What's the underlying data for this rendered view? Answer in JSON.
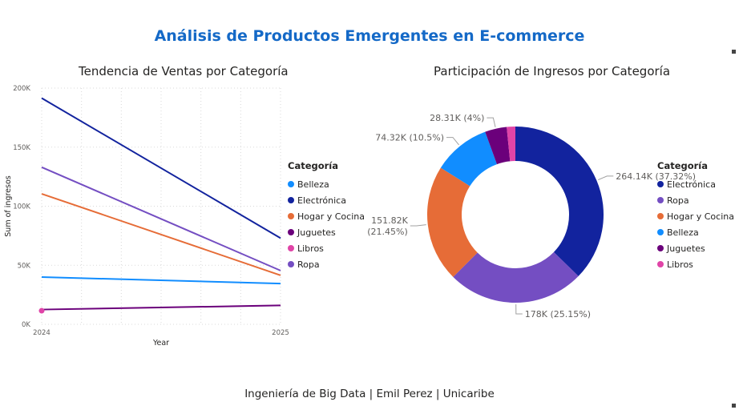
{
  "page": {
    "title": "Análisis de Productos Emergentes en E-commerce",
    "footer": "Ingeniería de Big Data | Emil Perez | Unicaribe"
  },
  "line_chart_legend": {
    "title": "Categoría",
    "items": [
      {
        "label": "Belleza",
        "color": "#118dff"
      },
      {
        "label": "Electrónica",
        "color": "#12239e"
      },
      {
        "label": "Hogar y Cocina",
        "color": "#e66c37"
      },
      {
        "label": "Juguetes",
        "color": "#6b007b"
      },
      {
        "label": "Libros",
        "color": "#e044a7"
      },
      {
        "label": "Ropa",
        "color": "#744ec2"
      }
    ]
  },
  "pie_chart_legend": {
    "title": "Categoría",
    "items": [
      {
        "label": "Electrónica",
        "color": "#12239e"
      },
      {
        "label": "Ropa",
        "color": "#744ec2"
      },
      {
        "label": "Hogar y Cocina",
        "color": "#e66c37"
      },
      {
        "label": "Belleza",
        "color": "#118dff"
      },
      {
        "label": "Juguetes",
        "color": "#6b007b"
      },
      {
        "label": "Libros",
        "color": "#e044a7"
      }
    ]
  },
  "chart_data": [
    {
      "type": "line",
      "title": "Tendencia de Ventas por Categoría",
      "xlabel": "Year",
      "ylabel": "Sum of ingresos",
      "x": [
        "2024",
        "2025"
      ],
      "ylim": [
        0,
        200000
      ],
      "yticks": [
        0,
        50000,
        100000,
        150000,
        200000
      ],
      "ytick_labels": [
        "0K",
        "50K",
        "100K",
        "150K",
        "200K"
      ],
      "grid": true,
      "legend_position": "right",
      "series": [
        {
          "name": "Belleza",
          "color": "#118dff",
          "values": [
            40000,
            34500
          ]
        },
        {
          "name": "Electrónica",
          "color": "#12239e",
          "values": [
            191500,
            73000
          ]
        },
        {
          "name": "Hogar y Cocina",
          "color": "#e66c37",
          "values": [
            110500,
            41500
          ]
        },
        {
          "name": "Juguetes",
          "color": "#6b007b",
          "values": [
            12500,
            16000
          ]
        },
        {
          "name": "Libros",
          "color": "#e044a7",
          "values": [
            11500,
            null
          ]
        },
        {
          "name": "Ropa",
          "color": "#744ec2",
          "values": [
            133000,
            45500
          ]
        }
      ]
    },
    {
      "type": "pie",
      "donut": true,
      "title": "Participación de Ingresos por Categoría",
      "legend_position": "right",
      "slices": [
        {
          "name": "Electrónica",
          "value": 264140,
          "percent": 37.32,
          "color": "#12239e",
          "label": "264.14K (37.32%)"
        },
        {
          "name": "Ropa",
          "value": 178000,
          "percent": 25.15,
          "color": "#744ec2",
          "label": "178K (25.15%)"
        },
        {
          "name": "Hogar y Cocina",
          "value": 151820,
          "percent": 21.45,
          "color": "#e66c37",
          "label": "151.82K\n(21.45%)"
        },
        {
          "name": "Belleza",
          "value": 74320,
          "percent": 10.5,
          "color": "#118dff",
          "label": "74.32K (10.5%)"
        },
        {
          "name": "Juguetes",
          "value": 28310,
          "percent": 4.0,
          "color": "#6b007b",
          "label": "28.31K (4%)"
        },
        {
          "name": "Libros",
          "value": 11150,
          "percent": 1.58,
          "color": "#e044a7",
          "label": ""
        }
      ]
    }
  ]
}
